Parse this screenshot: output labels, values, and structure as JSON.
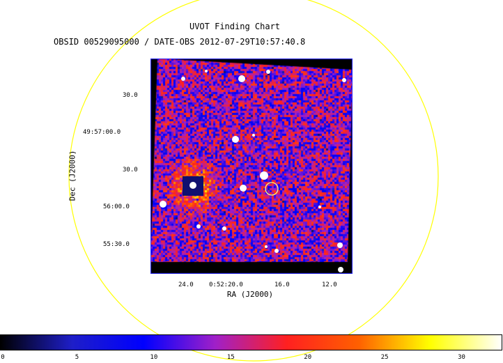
{
  "chart": {
    "title": "UVOT Finding Chart",
    "subtitle": "OBSID 00529095000 / DATE-OBS 2012-07-29T10:57:40.8",
    "xlabel": "RA (J2000)",
    "ylabel": "Dec (J2000)"
  },
  "chart_data": {
    "type": "heatmap",
    "title": "UVOT Finding Chart",
    "subtitle": "OBSID 00529095000 / DATE-OBS 2012-07-29T10:57:40.8",
    "xlabel": "RA (J2000)",
    "ylabel": "Dec (J2000)",
    "x_ticks": [
      "24.0",
      "0:52:20.0",
      "16.0",
      "12.0"
    ],
    "y_ticks": [
      "30.0",
      "49:57:00.0",
      "30.0",
      "56:00.0",
      "55:30.0"
    ],
    "colorbar": {
      "ticks": [
        "0",
        "5",
        "10",
        "15",
        "20",
        "25",
        "30"
      ],
      "range": [
        0,
        32.6
      ],
      "colormap": [
        "#000000",
        "#1e1ec8",
        "#0000ff",
        "#a020c8",
        "#ff2020",
        "#ff6000",
        "#ffff00",
        "#ffffff"
      ]
    },
    "colors": {
      "field_circle": "#ffff00",
      "frame": "#2222ff",
      "target_marker": "#ffff70"
    }
  }
}
